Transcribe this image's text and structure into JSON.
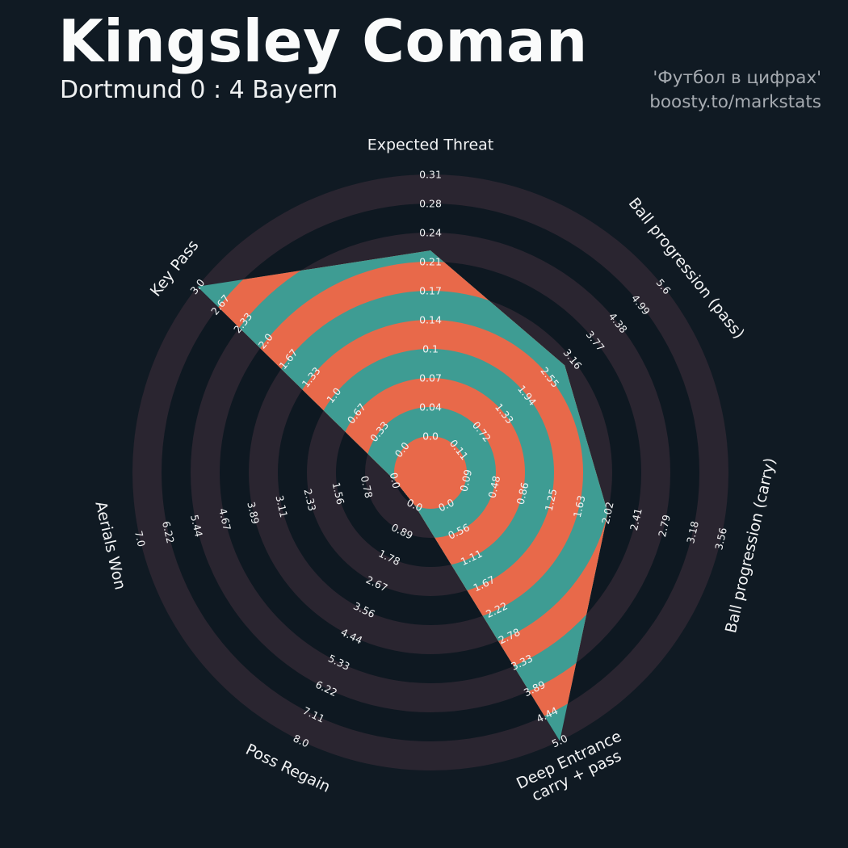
{
  "header": {
    "title": "Kingsley Coman",
    "subtitle": "Dortmund 0 : 4 Bayern",
    "watermark_line1": "'Футбол в цифрах'",
    "watermark_line2": "boosty.to/markstats"
  },
  "colors": {
    "background": "#101a23",
    "ring_dark": "#0e1821",
    "ring_light": "#2a2530",
    "slice_teal": "#3e9c93",
    "slice_orange": "#e8694a",
    "text_primary": "#f2f3f4",
    "text_muted": "#a6abb1"
  },
  "chart_data": {
    "type": "radar",
    "title": "Kingsley Coman",
    "subtitle": "Dortmund 0 : 4 Bayern",
    "rings": 9,
    "legend": "none",
    "axes": [
      {
        "label": "Expected Threat",
        "label_lines": [
          "Expected Threat"
        ],
        "min": 0.0,
        "max": 0.31,
        "value": 0.22,
        "ticks": [
          "0.0",
          "0.04",
          "0.07",
          "0.1",
          "0.14",
          "0.17",
          "0.21",
          "0.24",
          "0.28",
          "0.31"
        ]
      },
      {
        "label": "Ball progression (pass)",
        "label_lines": [
          "Ball progression (pass)"
        ],
        "min": 0.11,
        "max": 5.6,
        "value": 2.95,
        "ticks": [
          "0.11",
          "0.72",
          "1.33",
          "1.94",
          "2.55",
          "3.16",
          "3.77",
          "4.38",
          "4.99",
          "5.6"
        ]
      },
      {
        "label": "Ball progression (carry)",
        "label_lines": [
          "Ball progression (carry)"
        ],
        "min": 0.09,
        "max": 3.56,
        "value": 2.02,
        "ticks": [
          "0.09",
          "0.48",
          "0.86",
          "1.25",
          "1.63",
          "2.02",
          "2.41",
          "2.79",
          "3.18",
          "3.56"
        ]
      },
      {
        "label": "Deep Entrance carry + pass",
        "label_lines": [
          "Deep Entrance",
          "carry + pass"
        ],
        "min": 0.0,
        "max": 5.0,
        "value": 5.0,
        "ticks": [
          "0.0",
          "0.56",
          "1.11",
          "1.67",
          "2.22",
          "2.78",
          "3.33",
          "3.89",
          "4.44",
          "5.0"
        ]
      },
      {
        "label": "Poss Regain",
        "label_lines": [
          "Poss Regain"
        ],
        "min": 0.0,
        "max": 8.0,
        "value": 0.0,
        "ticks": [
          "0.0",
          "0.89",
          "1.78",
          "2.67",
          "3.56",
          "4.44",
          "5.33",
          "6.22",
          "7.11",
          "8.0"
        ]
      },
      {
        "label": "Aerials Won",
        "label_lines": [
          "Aerials Won"
        ],
        "min": 0.0,
        "max": 7.0,
        "value": 0.0,
        "ticks": [
          "0.0",
          "0.78",
          "1.56",
          "2.33",
          "3.11",
          "3.89",
          "4.67",
          "5.44",
          "6.22",
          "7.0"
        ]
      },
      {
        "label": "Key Pass",
        "label_lines": [
          "Key Pass"
        ],
        "min": 0.0,
        "max": 3.0,
        "value": 3.0,
        "ticks": [
          "0.0",
          "0.33",
          "0.67",
          "1.0",
          "1.33",
          "1.67",
          "2.0",
          "2.33",
          "2.67",
          "3.0"
        ]
      }
    ]
  }
}
